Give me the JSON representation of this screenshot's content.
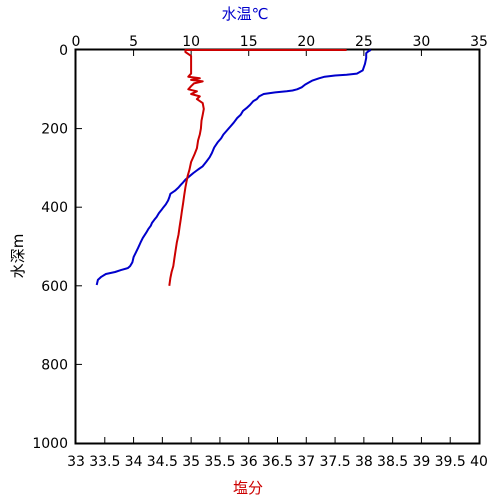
{
  "chart_data": {
    "type": "line",
    "top_axis": {
      "label": "水温℃",
      "label_color": "#0000cc",
      "range": [
        0,
        35
      ],
      "ticks": [
        "0",
        "5",
        "10",
        "15",
        "20",
        "25",
        "30",
        "35"
      ]
    },
    "bottom_axis": {
      "label": "塩分",
      "label_color": "#cc0000",
      "range": [
        33,
        40
      ],
      "ticks": [
        "33",
        "33.5",
        "34",
        "34.5",
        "35",
        "35.5",
        "36",
        "36.5",
        "37",
        "37.5",
        "38",
        "38.5",
        "39",
        "39.5",
        "40"
      ]
    },
    "y_axis": {
      "label": "水深m",
      "range": [
        0,
        1000
      ],
      "inverted": true,
      "ticks": [
        "0",
        "200",
        "400",
        "600",
        "800",
        "1000"
      ]
    },
    "grid": false,
    "series": [
      {
        "quantity": "temperature",
        "axis": "top",
        "color": "#0000cc",
        "points": [
          [
            25.6,
            0
          ],
          [
            25.4,
            3
          ],
          [
            25.2,
            8
          ],
          [
            25.2,
            20
          ],
          [
            25.1,
            35
          ],
          [
            24.9,
            52
          ],
          [
            24.4,
            60
          ],
          [
            23.5,
            63
          ],
          [
            22.5,
            65
          ],
          [
            21.6,
            68
          ],
          [
            21.1,
            72
          ],
          [
            20.5,
            78
          ],
          [
            20.2,
            83
          ],
          [
            19.9,
            88
          ],
          [
            19.6,
            95
          ],
          [
            19.2,
            100
          ],
          [
            18.8,
            103
          ],
          [
            18.3,
            105
          ],
          [
            17.3,
            108
          ],
          [
            16.3,
            112
          ],
          [
            15.9,
            118
          ],
          [
            15.7,
            125
          ],
          [
            15.4,
            130
          ],
          [
            15.1,
            140
          ],
          [
            14.8,
            148
          ],
          [
            14.5,
            155
          ],
          [
            14.3,
            165
          ],
          [
            14.0,
            173
          ],
          [
            13.7,
            185
          ],
          [
            13.4,
            195
          ],
          [
            13.1,
            205
          ],
          [
            12.8,
            215
          ],
          [
            12.6,
            225
          ],
          [
            12.3,
            235
          ],
          [
            12.0,
            248
          ],
          [
            11.8,
            262
          ],
          [
            11.6,
            273
          ],
          [
            11.3,
            285
          ],
          [
            11.0,
            296
          ],
          [
            10.6,
            304
          ],
          [
            10.2,
            313
          ],
          [
            9.9,
            320
          ],
          [
            9.5,
            330
          ],
          [
            9.3,
            337
          ],
          [
            9.1,
            343
          ],
          [
            8.9,
            350
          ],
          [
            8.6,
            358
          ],
          [
            8.2,
            366
          ],
          [
            8.1,
            375
          ],
          [
            8.0,
            383
          ],
          [
            7.8,
            393
          ],
          [
            7.6,
            400
          ],
          [
            7.4,
            408
          ],
          [
            7.2,
            415
          ],
          [
            7.0,
            425
          ],
          [
            6.8,
            432
          ],
          [
            6.6,
            440
          ],
          [
            6.5,
            447
          ],
          [
            6.3,
            455
          ],
          [
            6.1,
            465
          ],
          [
            5.8,
            478
          ],
          [
            5.6,
            490
          ],
          [
            5.4,
            503
          ],
          [
            5.2,
            515
          ],
          [
            5.0,
            527
          ],
          [
            4.9,
            540
          ],
          [
            4.7,
            550
          ],
          [
            4.5,
            555
          ],
          [
            3.9,
            560
          ],
          [
            3.4,
            565
          ],
          [
            2.6,
            570
          ],
          [
            2.2,
            577
          ],
          [
            1.9,
            585
          ],
          [
            1.8,
            598
          ]
        ]
      },
      {
        "quantity": "salinity",
        "axis": "bottom",
        "color": "#cc0000",
        "points": [
          [
            37.7,
            0
          ],
          [
            34.9,
            0
          ],
          [
            34.9,
            5
          ],
          [
            35.0,
            15
          ],
          [
            35.0,
            30
          ],
          [
            35.0,
            45
          ],
          [
            35.0,
            60
          ],
          [
            34.95,
            68
          ],
          [
            35.15,
            72
          ],
          [
            35.0,
            76
          ],
          [
            35.2,
            80
          ],
          [
            35.05,
            85
          ],
          [
            35.0,
            92
          ],
          [
            34.95,
            100
          ],
          [
            35.1,
            105
          ],
          [
            35.0,
            112
          ],
          [
            35.15,
            118
          ],
          [
            35.1,
            125
          ],
          [
            35.2,
            135
          ],
          [
            35.22,
            150
          ],
          [
            35.2,
            165
          ],
          [
            35.18,
            180
          ],
          [
            35.17,
            200
          ],
          [
            35.15,
            215
          ],
          [
            35.12,
            230
          ],
          [
            35.1,
            250
          ],
          [
            35.06,
            265
          ],
          [
            35.0,
            285
          ],
          [
            34.97,
            305
          ],
          [
            34.94,
            320
          ],
          [
            34.92,
            335
          ],
          [
            34.9,
            350
          ],
          [
            34.88,
            370
          ],
          [
            34.86,
            390
          ],
          [
            34.84,
            410
          ],
          [
            34.82,
            430
          ],
          [
            34.8,
            450
          ],
          [
            34.78,
            470
          ],
          [
            34.75,
            490
          ],
          [
            34.73,
            510
          ],
          [
            34.71,
            530
          ],
          [
            34.69,
            550
          ],
          [
            34.66,
            565
          ],
          [
            34.64,
            580
          ],
          [
            34.62,
            600
          ]
        ]
      }
    ]
  }
}
